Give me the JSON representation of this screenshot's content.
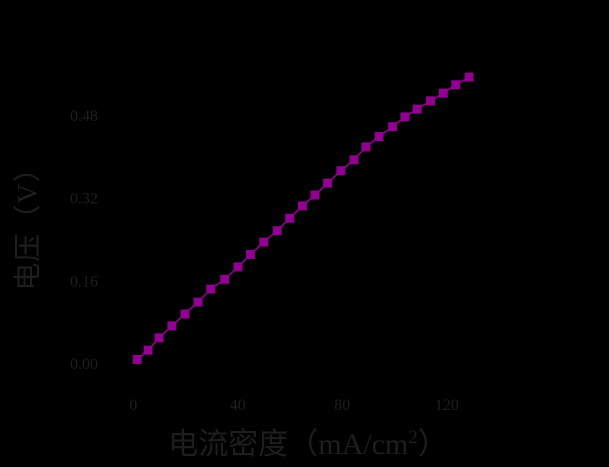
{
  "chart_data": {
    "type": "line",
    "title": "",
    "xlabel_prefix": "电流密度（mA/cm",
    "xlabel_sup": "2",
    "xlabel_suffix": "）",
    "ylabel": "电压（V）",
    "x": [
      1.5,
      5.7,
      9.9,
      14.8,
      19.8,
      24.8,
      29.7,
      35.0,
      40.1,
      44.9,
      50.0,
      55.1,
      59.9,
      64.8,
      69.6,
      74.4,
      79.5,
      84.5,
      89.1,
      94.1,
      99.3,
      104.0,
      108.7,
      113.8,
      118.7,
      123.5,
      128.6
    ],
    "y": [
      0.009,
      0.027,
      0.051,
      0.074,
      0.097,
      0.12,
      0.145,
      0.164,
      0.188,
      0.212,
      0.236,
      0.258,
      0.282,
      0.306,
      0.327,
      0.35,
      0.374,
      0.395,
      0.42,
      0.44,
      0.459,
      0.478,
      0.493,
      0.509,
      0.524,
      0.54,
      0.555
    ],
    "x_ticks": [
      "0",
      "40",
      "80",
      "120"
    ],
    "x_tick_values": [
      0,
      40,
      80,
      120
    ],
    "y_ticks": [
      "0.00",
      "0.16",
      "0.32",
      "0.48"
    ],
    "y_tick_values": [
      0.0,
      0.16,
      0.32,
      0.48
    ],
    "xlim": [
      -8.9,
      151.9
    ],
    "ylim": [
      -0.05,
      0.646
    ],
    "marker": "square",
    "marker_color": "#920092",
    "line_color": "#920092",
    "background_color": "#000000",
    "text_color": "#1e1e1e",
    "grid": false,
    "legend": null
  }
}
